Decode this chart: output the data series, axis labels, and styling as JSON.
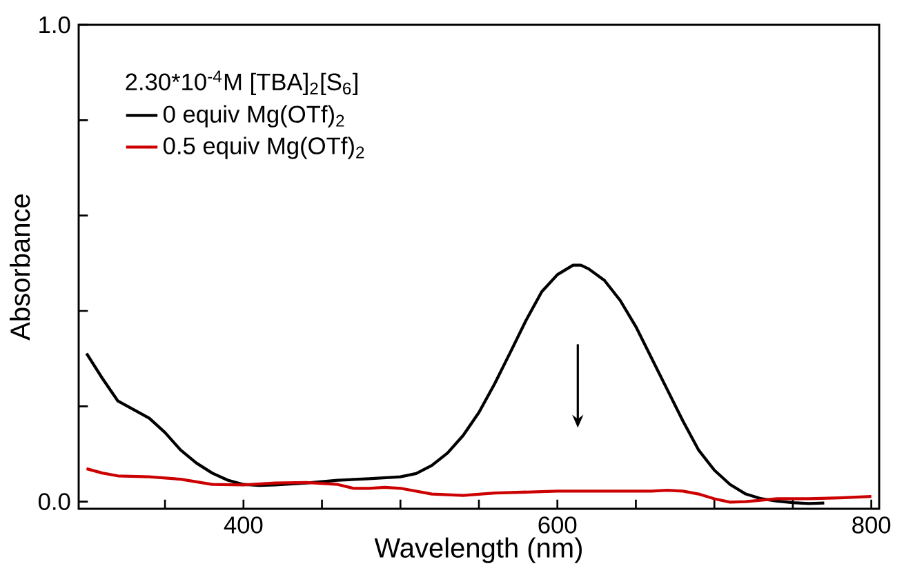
{
  "chart_data": {
    "type": "line",
    "xlabel": "Wavelength (nm)",
    "ylabel": "Absorbance",
    "legend_title": "2.30*10$^{-4}$M [TBA]$_{2}$[S$_{6}$]",
    "legend": "top left",
    "grid": false,
    "marker": "none",
    "line_style": "solid",
    "xlim": [
      295,
      805
    ],
    "ylim": [
      -0.015,
      1.0
    ],
    "xticks": [
      {
        "value": 350,
        "label": null
      },
      400,
      {
        "value": 450,
        "label": null
      },
      {
        "value": 500,
        "label": null
      },
      {
        "value": 550,
        "label": null
      },
      600,
      {
        "value": 650,
        "label": null
      },
      {
        "value": 700,
        "label": null
      },
      {
        "value": 750,
        "label": null
      },
      800
    ],
    "yticks": [
      {
        "value": 0,
        "label": "0.0"
      },
      {
        "value": 0.2,
        "label": null
      },
      {
        "value": 0.4,
        "label": null
      },
      {
        "value": 0.6,
        "label": null
      },
      {
        "value": 0.8,
        "label": null
      },
      {
        "value": 1.0,
        "label": "1.0"
      }
    ],
    "series": [
      {
        "name": "0 equiv Mg(OTf)$_{2}$",
        "color": "#000000",
        "x": [
          300,
          310,
          320,
          330,
          340,
          350,
          360,
          370,
          380,
          390,
          400,
          410,
          420,
          440,
          460,
          480,
          500,
          510,
          520,
          530,
          540,
          550,
          560,
          570,
          580,
          590,
          600,
          610,
          615,
          620,
          630,
          640,
          650,
          660,
          670,
          680,
          690,
          700,
          710,
          720,
          730,
          740,
          750,
          760,
          770
        ],
        "values": [
          0.311,
          0.259,
          0.211,
          0.193,
          0.175,
          0.145,
          0.108,
          0.081,
          0.06,
          0.045,
          0.036,
          0.034,
          0.035,
          0.039,
          0.045,
          0.048,
          0.052,
          0.059,
          0.076,
          0.102,
          0.139,
          0.187,
          0.247,
          0.313,
          0.38,
          0.44,
          0.476,
          0.496,
          0.496,
          0.488,
          0.464,
          0.422,
          0.367,
          0.301,
          0.235,
          0.169,
          0.108,
          0.066,
          0.036,
          0.016,
          0.006,
          0.001,
          -0.002,
          -0.004,
          -0.003
        ]
      },
      {
        "name": "0.5 equiv Mg(OTf)$_{2}$",
        "color": "#cc0000",
        "x": [
          300,
          310,
          320,
          340,
          360,
          380,
          400,
          420,
          440,
          460,
          470,
          480,
          490,
          500,
          520,
          540,
          560,
          600,
          640,
          660,
          670,
          680,
          690,
          700,
          710,
          720,
          740,
          760,
          780,
          800
        ],
        "values": [
          0.069,
          0.06,
          0.054,
          0.052,
          0.047,
          0.036,
          0.035,
          0.039,
          0.04,
          0.036,
          0.028,
          0.028,
          0.03,
          0.028,
          0.016,
          0.013,
          0.018,
          0.022,
          0.022,
          0.022,
          0.024,
          0.022,
          0.016,
          0.006,
          -0.001,
          0.0,
          0.006,
          0.006,
          0.008,
          0.011
        ]
      }
    ]
  }
}
